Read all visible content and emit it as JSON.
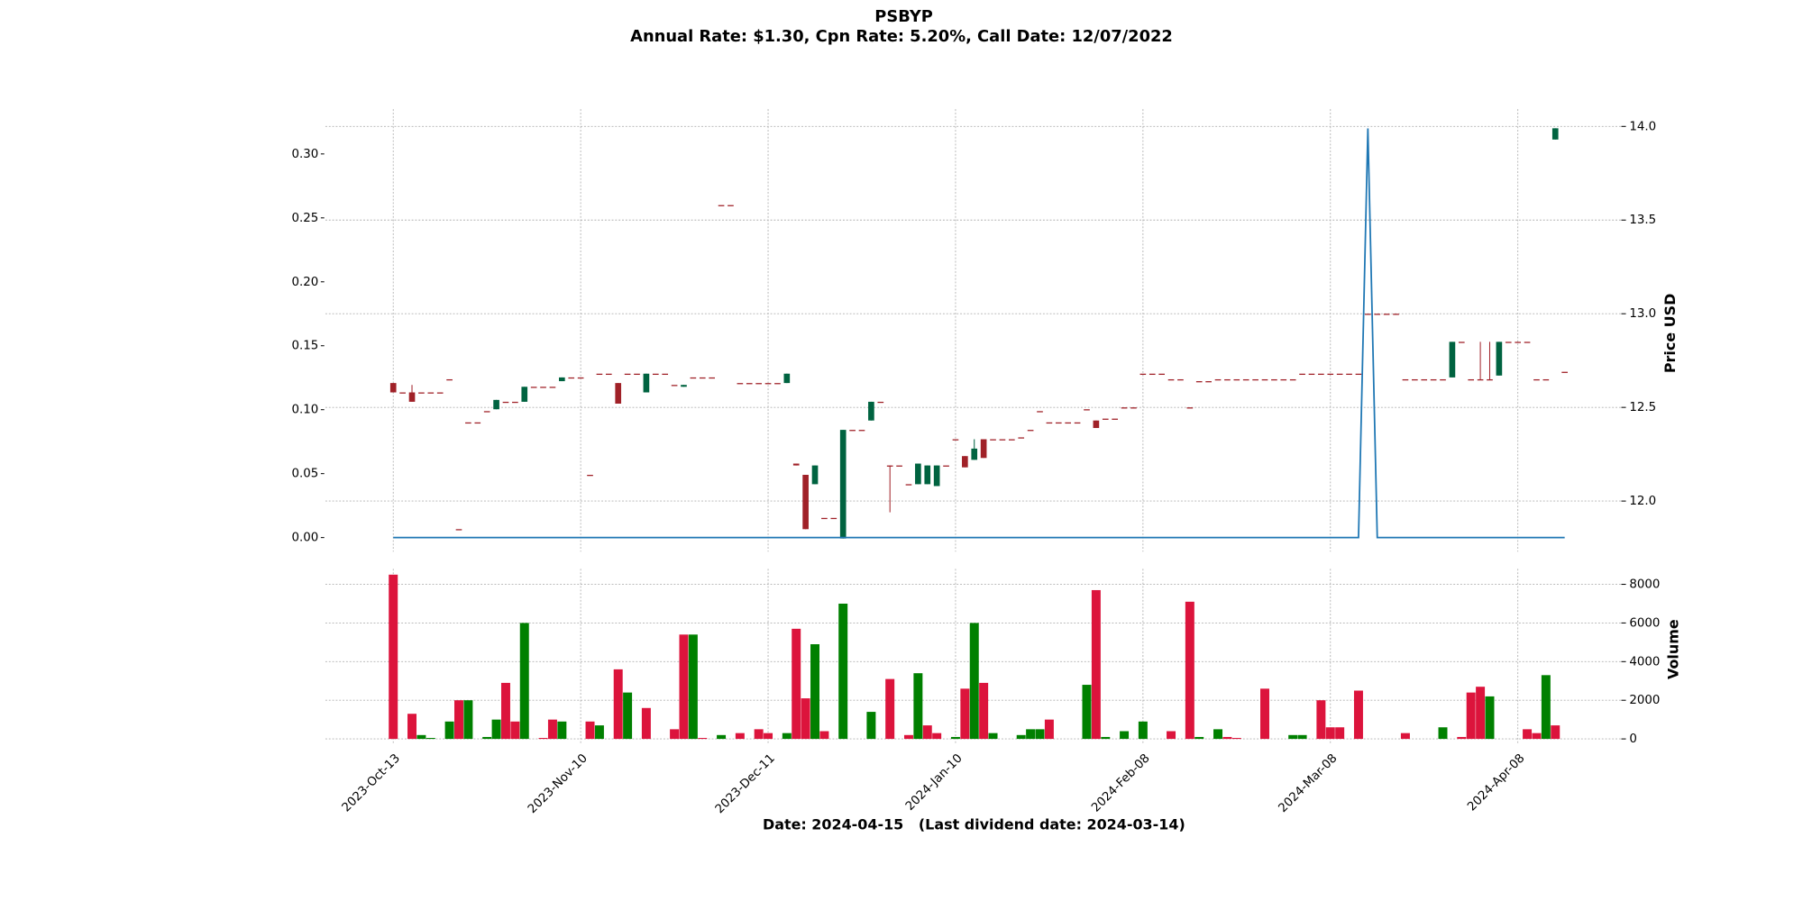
{
  "chart_data": {
    "type": "candlestick",
    "title": "PSBYP",
    "subtitle": "Annual Rate: $1.30, Cpn Rate: 5.20%, Call Date: 12/07/2022",
    "xlabel": "Date: 2024-04-15   (Last dividend date: 2024-03-14)",
    "y2label": "Price USD",
    "grid": true,
    "up_color": "#006340",
    "down_color": "#a02128",
    "categories": [
      "2023-Oct-13",
      null,
      null,
      null,
      null,
      null,
      null,
      null,
      null,
      null,
      null,
      null,
      null,
      null,
      null,
      null,
      null,
      null,
      null,
      null,
      "2023-Nov-10",
      null,
      null,
      null,
      null,
      null,
      null,
      null,
      null,
      null,
      null,
      null,
      null,
      null,
      null,
      null,
      null,
      null,
      null,
      null,
      "2023-Dec-11",
      null,
      null,
      null,
      null,
      null,
      null,
      null,
      null,
      null,
      null,
      null,
      null,
      null,
      null,
      null,
      null,
      null,
      null,
      null,
      "2024-Jan-10",
      null,
      null,
      null,
      null,
      null,
      null,
      null,
      null,
      null,
      null,
      null,
      null,
      null,
      null,
      null,
      null,
      null,
      null,
      null,
      "2024-Feb-08",
      null,
      null,
      null,
      null,
      null,
      null,
      null,
      null,
      null,
      null,
      null,
      null,
      null,
      null,
      null,
      null,
      null,
      null,
      null,
      "2024-Mar-08",
      null,
      null,
      null,
      null,
      null,
      null,
      null,
      null,
      null,
      null,
      null,
      null,
      null,
      null,
      null,
      null,
      null,
      null,
      null,
      "2024-Apr-08",
      null,
      null,
      null,
      null,
      null
    ],
    "open": [
      12.63,
      12.58,
      12.58,
      12.58,
      12.58,
      12.58,
      12.65,
      11.85,
      12.42,
      12.42,
      12.48,
      12.49,
      12.53,
      12.53,
      12.53,
      12.61,
      12.61,
      12.61,
      12.64,
      12.66,
      12.66,
      12.14,
      12.68,
      12.68,
      12.63,
      12.68,
      12.68,
      12.58,
      12.68,
      12.68,
      12.62,
      12.61,
      12.66,
      12.66,
      12.66,
      13.58,
      13.58,
      12.63,
      12.63,
      12.63,
      12.63,
      12.63,
      12.63,
      12.2,
      12.14,
      12.09,
      11.91,
      11.91,
      11.8,
      12.38,
      12.38,
      12.43,
      12.53,
      12.19,
      12.19,
      12.09,
      12.09,
      12.09,
      12.08,
      12.19,
      12.33,
      12.24,
      12.22,
      12.33,
      12.33,
      12.33,
      12.33,
      12.34,
      12.38,
      12.48,
      12.42,
      12.42,
      12.42,
      12.42,
      12.49,
      12.43,
      12.44,
      12.44,
      12.5,
      12.5,
      12.68,
      12.68,
      12.68,
      12.65,
      12.65,
      12.5,
      12.64,
      12.64,
      12.65,
      12.65,
      12.65,
      12.65,
      12.65,
      12.65,
      12.65,
      12.65,
      12.65,
      12.68,
      12.68,
      12.68,
      12.68,
      12.68,
      12.68,
      12.68,
      13,
      13,
      13,
      13,
      12.65,
      12.65,
      12.65,
      12.65,
      12.65,
      12.66,
      12.85,
      12.65,
      12.65,
      12.65,
      12.67,
      12.85,
      12.85,
      12.85,
      12.65,
      12.65,
      13.93,
      12.69
    ],
    "high": [
      12.63,
      12.58,
      12.62,
      12.58,
      12.58,
      12.58,
      12.65,
      11.85,
      12.42,
      12.42,
      12.48,
      12.54,
      12.53,
      12.53,
      12.61,
      12.61,
      12.61,
      12.61,
      12.66,
      12.66,
      12.66,
      12.14,
      12.68,
      12.68,
      12.63,
      12.68,
      12.68,
      12.68,
      12.68,
      12.68,
      12.62,
      12.62,
      12.66,
      12.66,
      12.66,
      13.58,
      13.58,
      12.63,
      12.63,
      12.63,
      12.63,
      12.63,
      12.68,
      12.2,
      12.14,
      12.19,
      11.91,
      11.91,
      12.38,
      12.38,
      12.38,
      12.53,
      12.53,
      12.19,
      12.19,
      12.09,
      12.2,
      12.19,
      12.19,
      12.19,
      12.33,
      12.24,
      12.33,
      12.33,
      12.33,
      12.33,
      12.33,
      12.34,
      12.38,
      12.48,
      12.42,
      12.42,
      12.42,
      12.42,
      12.49,
      12.43,
      12.44,
      12.44,
      12.5,
      12.5,
      12.68,
      12.68,
      12.68,
      12.65,
      12.65,
      12.5,
      12.64,
      12.64,
      12.65,
      12.65,
      12.65,
      12.65,
      12.65,
      12.65,
      12.65,
      12.65,
      12.65,
      12.68,
      12.68,
      12.68,
      12.68,
      12.68,
      12.68,
      12.68,
      13,
      13,
      13,
      13,
      12.65,
      12.65,
      12.65,
      12.65,
      12.65,
      12.85,
      12.85,
      12.65,
      12.85,
      12.85,
      12.85,
      12.85,
      12.85,
      12.85,
      12.65,
      12.65,
      13.99,
      12.69
    ],
    "low": [
      12.58,
      12.58,
      12.53,
      12.58,
      12.58,
      12.58,
      12.65,
      11.85,
      12.42,
      12.42,
      12.48,
      12.49,
      12.53,
      12.53,
      12.53,
      12.61,
      12.61,
      12.61,
      12.64,
      12.66,
      12.66,
      12.14,
      12.68,
      12.68,
      12.52,
      12.68,
      12.68,
      12.58,
      12.68,
      12.68,
      12.62,
      12.61,
      12.66,
      12.66,
      12.66,
      13.58,
      13.58,
      12.63,
      12.63,
      12.63,
      12.63,
      12.63,
      12.63,
      12.19,
      11.85,
      12.09,
      11.91,
      11.91,
      11.8,
      12.38,
      12.38,
      12.43,
      12.53,
      11.94,
      12.19,
      12.09,
      12.09,
      12.09,
      12.08,
      12.19,
      12.33,
      12.18,
      12.22,
      12.23,
      12.33,
      12.33,
      12.33,
      12.34,
      12.38,
      12.48,
      12.42,
      12.42,
      12.42,
      12.42,
      12.49,
      12.39,
      12.44,
      12.44,
      12.5,
      12.5,
      12.68,
      12.68,
      12.68,
      12.65,
      12.65,
      12.5,
      12.64,
      12.64,
      12.65,
      12.65,
      12.65,
      12.65,
      12.65,
      12.65,
      12.65,
      12.65,
      12.65,
      12.68,
      12.68,
      12.68,
      12.68,
      12.68,
      12.68,
      12.68,
      13,
      13,
      13,
      13,
      12.65,
      12.65,
      12.65,
      12.65,
      12.65,
      12.66,
      12.85,
      12.65,
      12.65,
      12.65,
      12.67,
      12.85,
      12.85,
      12.85,
      12.65,
      12.65,
      13.93,
      12.69
    ],
    "close": [
      12.58,
      12.58,
      12.53,
      12.58,
      12.58,
      12.58,
      12.65,
      11.85,
      12.42,
      12.42,
      12.48,
      12.54,
      12.53,
      12.53,
      12.61,
      12.61,
      12.61,
      12.61,
      12.66,
      12.66,
      12.66,
      12.14,
      12.68,
      12.68,
      12.52,
      12.68,
      12.68,
      12.68,
      12.68,
      12.68,
      12.62,
      12.62,
      12.66,
      12.66,
      12.66,
      13.58,
      13.58,
      12.63,
      12.63,
      12.63,
      12.63,
      12.63,
      12.68,
      12.19,
      11.85,
      12.19,
      11.91,
      11.91,
      12.38,
      12.38,
      12.38,
      12.53,
      12.53,
      12.19,
      12.19,
      12.09,
      12.2,
      12.19,
      12.19,
      12.19,
      12.33,
      12.18,
      12.28,
      12.23,
      12.33,
      12.33,
      12.33,
      12.34,
      12.38,
      12.48,
      12.42,
      12.42,
      12.42,
      12.42,
      12.49,
      12.39,
      12.44,
      12.44,
      12.5,
      12.5,
      12.68,
      12.68,
      12.68,
      12.65,
      12.65,
      12.5,
      12.64,
      12.64,
      12.65,
      12.65,
      12.65,
      12.65,
      12.65,
      12.65,
      12.65,
      12.65,
      12.65,
      12.68,
      12.68,
      12.68,
      12.68,
      12.68,
      12.68,
      12.68,
      13,
      13,
      13,
      13,
      12.65,
      12.65,
      12.65,
      12.65,
      12.65,
      12.85,
      12.85,
      12.65,
      12.65,
      12.65,
      12.85,
      12.85,
      12.85,
      12.85,
      12.65,
      12.65,
      13.99,
      12.69
    ],
    "y2lim": [
      11.73,
      14.092
    ],
    "y2ticks": [
      {
        "value": 12,
        "label": "12.0"
      },
      12.5,
      {
        "value": 13,
        "label": "13.0"
      },
      13.5,
      {
        "value": 14,
        "label": "14.0"
      }
    ],
    "dividend": {
      "color": "#1f77b4",
      "values": [
        0,
        0,
        0,
        0,
        0,
        0,
        0,
        0,
        0,
        0,
        0,
        0,
        0,
        0,
        0,
        0,
        0,
        0,
        0,
        0,
        0,
        0,
        0,
        0,
        0,
        0,
        0,
        0,
        0,
        0,
        0,
        0,
        0,
        0,
        0,
        0,
        0,
        0,
        0,
        0,
        0,
        0,
        0,
        0,
        0,
        0,
        0,
        0,
        0,
        0,
        0,
        0,
        0,
        0,
        0,
        0,
        0,
        0,
        0,
        0,
        0,
        0,
        0,
        0,
        0,
        0,
        0,
        0,
        0,
        0,
        0,
        0,
        0,
        0,
        0,
        0,
        0,
        0,
        0,
        0,
        0,
        0,
        0,
        0,
        0,
        0,
        0,
        0,
        0,
        0,
        0,
        0,
        0,
        0,
        0,
        0,
        0,
        0,
        0,
        0,
        0,
        0,
        0,
        0,
        0.32,
        0,
        0,
        0,
        0,
        0,
        0,
        0,
        0,
        0,
        0,
        0,
        0,
        0,
        0,
        0,
        0,
        0,
        0,
        0,
        0,
        0
      ]
    },
    "ylim": [
      -0.011,
      0.335
    ],
    "yticks": [
      {
        "value": 0,
        "label": "0.00"
      },
      {
        "value": 0.05,
        "label": "0.05"
      },
      {
        "value": 0.1,
        "label": "0.10"
      },
      {
        "value": 0.15,
        "label": "0.15"
      },
      {
        "value": 0.2,
        "label": "0.20"
      },
      {
        "value": 0.25,
        "label": "0.25"
      },
      {
        "value": 0.3,
        "label": "0.30"
      }
    ],
    "volume": {
      "ylabel": "Volume",
      "ylim": [
        -300,
        8800
      ],
      "yticks": [
        0,
        2000,
        4000,
        6000,
        8000
      ],
      "values": [
        8500,
        0,
        1300,
        200,
        50,
        0,
        900,
        2000,
        2000,
        0,
        100,
        1000,
        2900,
        900,
        6000,
        0,
        50,
        1000,
        900,
        0,
        0,
        900,
        700,
        0,
        3600,
        2400,
        0,
        1600,
        0,
        0,
        500,
        5400,
        5400,
        50,
        0,
        200,
        0,
        300,
        0,
        500,
        300,
        0,
        300,
        5700,
        2100,
        4900,
        400,
        0,
        7000,
        0,
        0,
        1400,
        0,
        3100,
        0,
        200,
        3400,
        700,
        300,
        0,
        100,
        2600,
        6000,
        2900,
        300,
        0,
        0,
        200,
        500,
        500,
        1000,
        0,
        0,
        0,
        2800,
        7700,
        100,
        0,
        400,
        0,
        900,
        0,
        0,
        400,
        0,
        7100,
        100,
        0,
        500,
        100,
        50,
        0,
        0,
        2600,
        0,
        0,
        200,
        200,
        0,
        2000,
        600,
        600,
        0,
        2500,
        0,
        0,
        0,
        0,
        300,
        0,
        0,
        0,
        600,
        0,
        100,
        2400,
        2700,
        2200,
        0,
        0,
        0,
        500,
        300,
        3300,
        700,
        0
      ],
      "colors": [
        "crimson",
        "crimson",
        "crimson",
        "green",
        "green",
        "crimson",
        "green",
        "crimson",
        "green",
        "crimson",
        "green",
        "green",
        "crimson",
        "crimson",
        "green",
        "crimson",
        "crimson",
        "crimson",
        "green",
        "crimson",
        "crimson",
        "crimson",
        "green",
        "crimson",
        "crimson",
        "green",
        "crimson",
        "crimson",
        "crimson",
        "crimson",
        "crimson",
        "crimson",
        "green",
        "crimson",
        "crimson",
        "green",
        "crimson",
        "crimson",
        "crimson",
        "crimson",
        "crimson",
        "crimson",
        "green",
        "crimson",
        "crimson",
        "green",
        "crimson",
        "crimson",
        "green",
        "crimson",
        "crimson",
        "green",
        "crimson",
        "crimson",
        "crimson",
        "crimson",
        "green",
        "crimson",
        "crimson",
        "crimson",
        "green",
        "crimson",
        "green",
        "crimson",
        "green",
        "crimson",
        "crimson",
        "green",
        "green",
        "green",
        "crimson",
        "crimson",
        "crimson",
        "crimson",
        "green",
        "crimson",
        "green",
        "crimson",
        "green",
        "crimson",
        "green",
        "crimson",
        "crimson",
        "crimson",
        "crimson",
        "crimson",
        "green",
        "crimson",
        "green",
        "crimson",
        "crimson",
        "crimson",
        "crimson",
        "crimson",
        "crimson",
        "crimson",
        "green",
        "green",
        "crimson",
        "crimson",
        "crimson",
        "crimson",
        "crimson",
        "crimson",
        "crimson",
        "crimson",
        "crimson",
        "crimson",
        "crimson",
        "crimson",
        "crimson",
        "crimson",
        "green",
        "crimson",
        "crimson",
        "crimson",
        "crimson",
        "green",
        "crimson",
        "crimson",
        "crimson",
        "crimson",
        "crimson",
        "green",
        "crimson",
        "crimson"
      ]
    }
  }
}
